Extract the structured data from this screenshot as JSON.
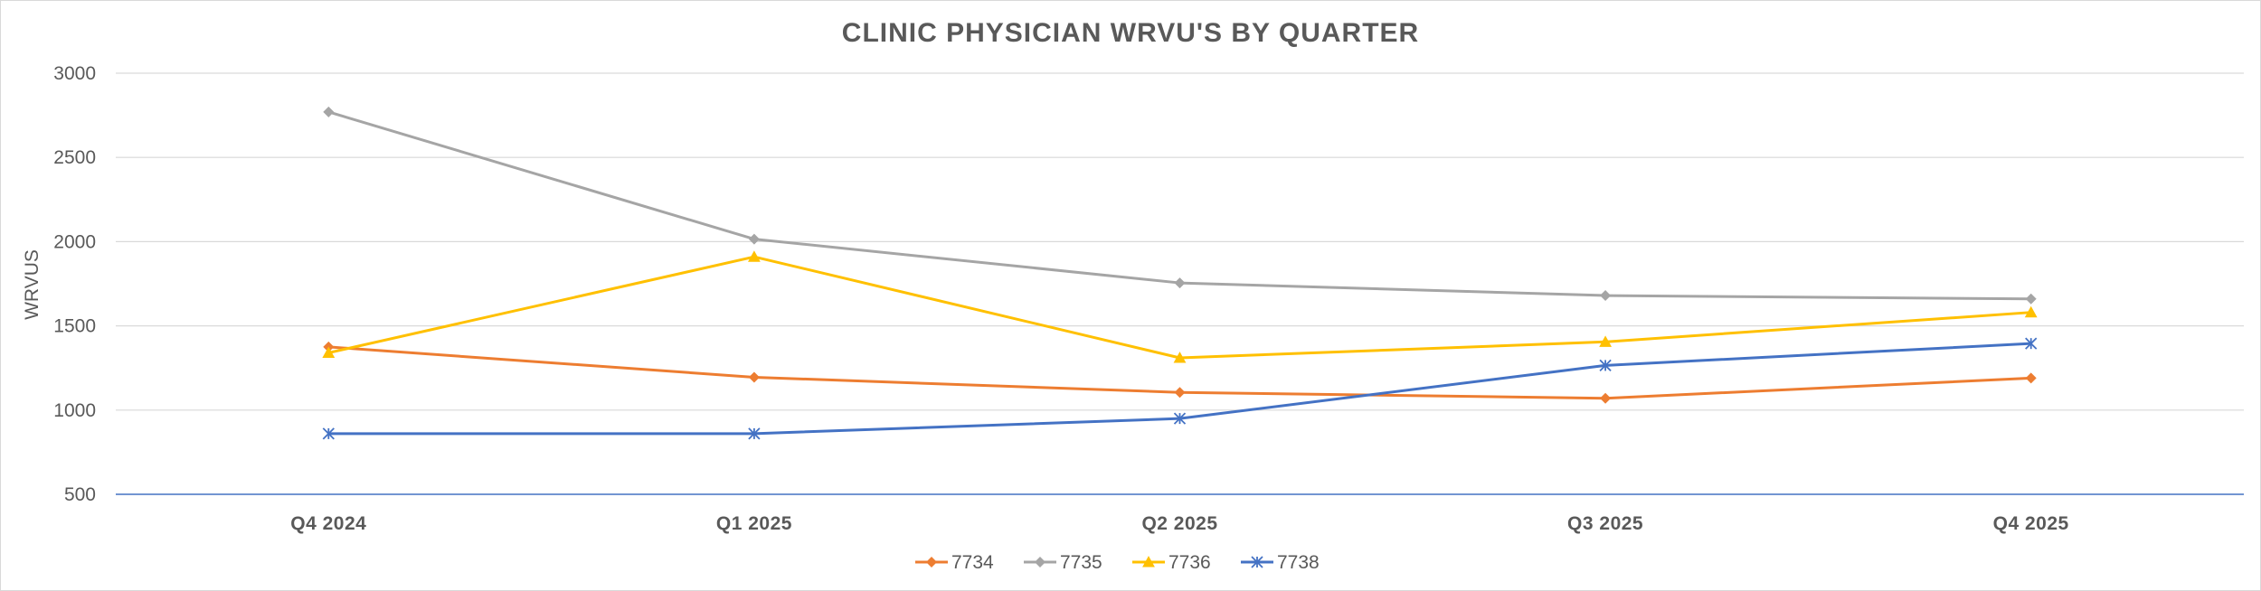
{
  "chart_data": {
    "type": "line",
    "title": "CLINIC PHYSICIAN WRVU'S BY QUARTER",
    "xlabel": "",
    "ylabel": "WRVUS",
    "categories": [
      "Q4 2024",
      "Q1 2025",
      "Q2 2025",
      "Q3 2025",
      "Q4 2025"
    ],
    "ylim": [
      500,
      3000
    ],
    "yticks": [
      "500",
      "1000",
      "1500",
      "2000",
      "2500",
      "3000"
    ],
    "grid": true,
    "legend_position": "bottom",
    "series": [
      {
        "name": "7734",
        "color": "#ED7D31",
        "marker": "diamond",
        "values": [
          1375,
          1195,
          1105,
          1070,
          1190
        ]
      },
      {
        "name": "7735",
        "color": "#A5A5A5",
        "marker": "diamond",
        "values": [
          2770,
          2015,
          1755,
          1680,
          1660
        ]
      },
      {
        "name": "7736",
        "color": "#FFC000",
        "marker": "triangle",
        "values": [
          1340,
          1910,
          1310,
          1405,
          1580
        ]
      },
      {
        "name": "7738",
        "color": "#4472C4",
        "marker": "star",
        "values": [
          860,
          860,
          950,
          1265,
          1395
        ]
      }
    ]
  }
}
